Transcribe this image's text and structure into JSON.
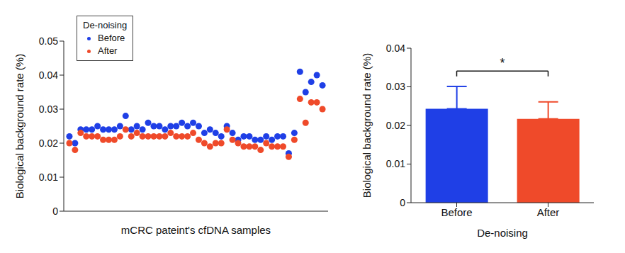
{
  "chart_data": [
    {
      "type": "scatter",
      "x_label": "mCRC pateint's cfDNA samples",
      "y_label": "Biological background rate (%)",
      "legend_title": "De-noising",
      "legend": "upper left",
      "tick_labels": "y",
      "marker": "circle",
      "x": [
        1,
        2,
        3,
        4,
        5,
        6,
        7,
        8,
        9,
        10,
        11,
        12,
        13,
        14,
        15,
        16,
        17,
        18,
        19,
        20,
        21,
        22,
        23,
        24,
        25,
        26,
        27,
        28,
        29,
        30,
        31,
        32,
        33,
        34,
        35,
        36,
        37,
        38,
        39,
        40,
        41,
        42,
        43,
        44,
        45,
        46
      ],
      "xlim": [
        0,
        47
      ],
      "ylim": [
        0,
        0.05
      ],
      "yticks": [
        0,
        0.01,
        0.02,
        0.03,
        0.04,
        0.05
      ],
      "series": [
        {
          "name": "Before",
          "color": "#1f3fe6",
          "values": [
            0.022,
            0.02,
            0.024,
            0.024,
            0.024,
            0.025,
            0.024,
            0.024,
            0.024,
            0.025,
            0.028,
            0.024,
            0.025,
            0.024,
            0.026,
            0.025,
            0.025,
            0.024,
            0.025,
            0.025,
            0.026,
            0.025,
            0.026,
            0.025,
            0.023,
            0.024,
            0.023,
            0.022,
            0.025,
            0.023,
            0.021,
            0.022,
            0.022,
            0.021,
            0.021,
            0.022,
            0.021,
            0.022,
            0.022,
            0.017,
            0.023,
            0.041,
            0.035,
            0.038,
            0.04,
            0.037
          ]
        },
        {
          "name": "After",
          "color": "#ef4a2a",
          "values": [
            0.02,
            0.018,
            0.023,
            0.022,
            0.022,
            0.022,
            0.021,
            0.021,
            0.021,
            0.022,
            0.024,
            0.022,
            0.023,
            0.022,
            0.022,
            0.022,
            0.022,
            0.022,
            0.023,
            0.022,
            0.022,
            0.022,
            0.023,
            0.021,
            0.02,
            0.019,
            0.02,
            0.02,
            0.024,
            0.021,
            0.02,
            0.019,
            0.019,
            0.019,
            0.018,
            0.02,
            0.019,
            0.019,
            0.019,
            0.016,
            0.021,
            0.033,
            0.026,
            0.032,
            0.032,
            0.03
          ]
        }
      ]
    },
    {
      "type": "bar",
      "x_label": "De-noising",
      "y_label": "Biological background rate (%)",
      "categories": [
        "Before",
        "After"
      ],
      "values": [
        0.0243,
        0.0217
      ],
      "errors": [
        0.0058,
        0.0044
      ],
      "colors": [
        "#1f3fe6",
        "#ef4a2a"
      ],
      "annotation": "*",
      "ylim": [
        0,
        0.04
      ],
      "yticks": [
        0,
        0.01,
        0.02,
        0.03,
        0.04
      ]
    }
  ]
}
